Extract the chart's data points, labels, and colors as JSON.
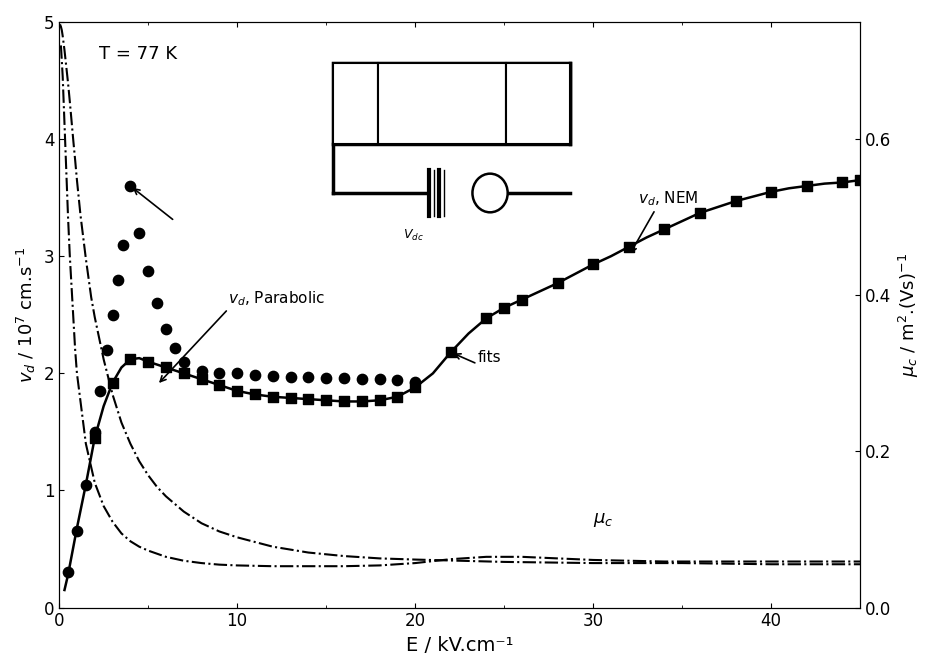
{
  "title_text": "T = 77 K",
  "xlabel": "E / kV.cm⁻¹",
  "ylabel_left": "$v_d$ / 10$^7$ cm.s$^{-1}$",
  "ylabel_right": "$\\mu_c$ / m$^2$.(Vs)$^{-1}$",
  "xlim": [
    0,
    45
  ],
  "ylim_left": [
    0,
    5
  ],
  "ylim_right": [
    0,
    0.75
  ],
  "xticks": [
    0,
    10,
    20,
    30,
    40
  ],
  "yticks_left": [
    0,
    1,
    2,
    3,
    4,
    5
  ],
  "yticks_right": [
    0.0,
    0.2,
    0.4,
    0.6
  ],
  "parabolic_E": [
    0.05,
    0.1,
    0.15,
    0.2,
    0.3,
    0.4,
    0.5,
    0.6,
    0.7,
    0.8,
    0.9,
    1.0,
    1.2,
    1.5,
    1.8,
    2.0,
    2.5,
    3.0,
    3.5,
    4.0,
    4.5,
    5.0,
    5.5,
    6.0,
    7.0,
    8.0,
    9.0,
    10.0,
    12.0,
    14.0,
    16.0,
    18.0,
    20.0,
    25.0,
    30.0,
    35.0,
    40.0,
    45.0
  ],
  "parabolic_v": [
    4.98,
    4.96,
    4.93,
    4.88,
    4.76,
    4.62,
    4.48,
    4.32,
    4.15,
    3.98,
    3.82,
    3.65,
    3.35,
    2.98,
    2.65,
    2.48,
    2.12,
    1.82,
    1.58,
    1.4,
    1.25,
    1.13,
    1.03,
    0.95,
    0.82,
    0.72,
    0.65,
    0.6,
    0.52,
    0.47,
    0.44,
    0.42,
    0.41,
    0.39,
    0.38,
    0.38,
    0.37,
    0.37
  ],
  "dots_E": [
    0.5,
    1.0,
    1.5,
    2.0,
    2.3,
    2.7,
    3.0,
    3.3,
    3.6,
    4.0,
    4.5,
    5.0,
    5.5,
    6.0,
    6.5,
    7.0,
    8.0,
    9.0,
    10.0,
    11.0,
    12.0,
    13.0,
    14.0,
    15.0,
    16.0,
    17.0,
    18.0,
    19.0,
    20.0
  ],
  "dots_v": [
    0.3,
    0.65,
    1.05,
    1.5,
    1.85,
    2.2,
    2.5,
    2.8,
    3.1,
    3.6,
    3.2,
    2.87,
    2.6,
    2.38,
    2.22,
    2.1,
    2.02,
    2.0,
    2.0,
    1.99,
    1.98,
    1.97,
    1.97,
    1.96,
    1.96,
    1.95,
    1.95,
    1.94,
    1.93
  ],
  "nem_E": [
    0.3,
    0.5,
    0.8,
    1.0,
    1.5,
    2.0,
    2.5,
    3.0,
    3.5,
    4.0,
    4.5,
    5.0,
    6.0,
    7.0,
    8.0,
    9.0,
    10.0,
    11.0,
    12.0,
    13.0,
    14.0,
    15.0,
    16.0,
    17.0,
    18.0,
    19.0,
    20.0,
    21.0,
    22.0,
    23.0,
    24.0,
    25.0,
    26.0,
    27.0,
    28.0,
    29.0,
    30.0,
    31.0,
    32.0,
    33.0,
    34.0,
    35.0,
    36.0,
    37.0,
    38.0,
    39.0,
    40.0,
    41.0,
    42.0,
    43.0,
    44.0,
    45.0
  ],
  "nem_v": [
    0.15,
    0.28,
    0.52,
    0.68,
    1.05,
    1.45,
    1.72,
    1.92,
    2.05,
    2.12,
    2.13,
    2.1,
    2.05,
    2.0,
    1.95,
    1.9,
    1.85,
    1.82,
    1.8,
    1.79,
    1.78,
    1.77,
    1.76,
    1.76,
    1.77,
    1.8,
    1.88,
    2.0,
    2.18,
    2.34,
    2.47,
    2.56,
    2.63,
    2.7,
    2.77,
    2.85,
    2.93,
    3.0,
    3.08,
    3.16,
    3.23,
    3.3,
    3.37,
    3.42,
    3.47,
    3.51,
    3.55,
    3.58,
    3.6,
    3.62,
    3.63,
    3.65
  ],
  "muc_E": [
    0.1,
    0.2,
    0.3,
    0.4,
    0.5,
    0.6,
    0.7,
    0.8,
    0.9,
    1.0,
    1.5,
    2.0,
    2.5,
    3.0,
    3.5,
    4.0,
    4.5,
    5.0,
    6.0,
    7.0,
    8.0,
    9.0,
    10.0,
    12.0,
    14.0,
    16.0,
    18.0,
    20.0,
    22.0,
    24.0,
    26.0,
    28.0,
    30.0,
    32.0,
    34.0,
    36.0,
    38.0,
    40.0,
    42.0,
    44.0,
    45.0
  ],
  "muc_v": [
    0.72,
    0.68,
    0.62,
    0.56,
    0.5,
    0.45,
    0.41,
    0.37,
    0.33,
    0.3,
    0.21,
    0.16,
    0.13,
    0.11,
    0.095,
    0.085,
    0.078,
    0.073,
    0.065,
    0.06,
    0.057,
    0.055,
    0.054,
    0.053,
    0.053,
    0.053,
    0.054,
    0.057,
    0.062,
    0.065,
    0.065,
    0.063,
    0.061,
    0.06,
    0.059,
    0.059,
    0.059,
    0.059,
    0.059,
    0.059,
    0.059
  ],
  "nem_squares_E": [
    2.0,
    3.0,
    4.0,
    5.0,
    6.0,
    7.0,
    8.0,
    9.0,
    10.0,
    11.0,
    12.0,
    13.0,
    14.0,
    15.0,
    16.0,
    17.0,
    18.0,
    19.0,
    20.0,
    22.0,
    24.0,
    25.0,
    26.0,
    28.0,
    30.0,
    32.0,
    34.0,
    36.0,
    38.0,
    40.0,
    42.0,
    44.0,
    45.0
  ],
  "nem_squares_v": [
    1.45,
    1.92,
    2.12,
    2.1,
    2.05,
    2.0,
    1.95,
    1.9,
    1.85,
    1.82,
    1.8,
    1.79,
    1.78,
    1.77,
    1.76,
    1.76,
    1.77,
    1.8,
    1.88,
    2.18,
    2.47,
    2.56,
    2.63,
    2.77,
    2.93,
    3.08,
    3.23,
    3.37,
    3.47,
    3.55,
    3.6,
    3.63,
    3.65
  ]
}
